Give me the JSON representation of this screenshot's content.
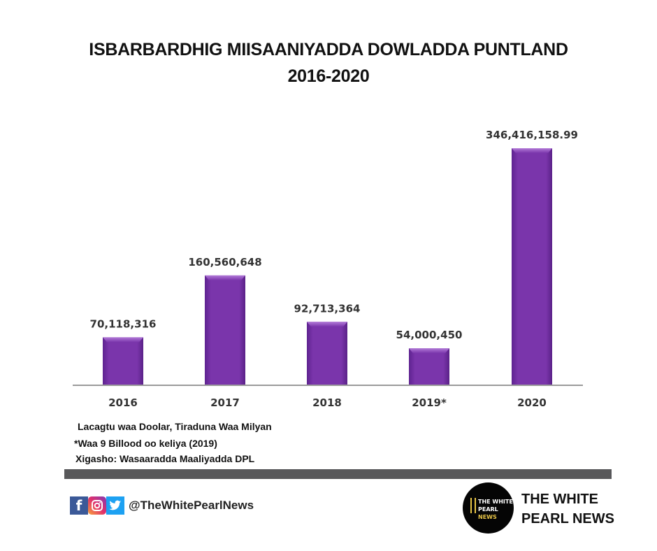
{
  "title_line1": "ISBARBARDHIG MIISAANIYADDA DOWLADDA PUNTLAND",
  "title_line2": "2016-2020",
  "chart_data": {
    "type": "bar",
    "title": "ISBARBARDHIG MIISAANIYADDA DOWLADDA PUNTLAND 2016-2020",
    "categories": [
      "2016",
      "2017",
      "2018",
      "2019*",
      "2020"
    ],
    "values": [
      70118316,
      160560648,
      92713364,
      54000450,
      346416158.99
    ],
    "value_labels": [
      "70,118,316",
      "160,560,648",
      "92,713,364",
      "54,000,450",
      "346,416,158.99"
    ],
    "xlabel": "",
    "ylabel": "",
    "ylim": [
      0,
      346416158.99
    ],
    "grid": false,
    "legend": "none",
    "bar_color": "#7a34a8"
  },
  "notes": [
    "Lacagtu waa Doolar, Tiraduna Waa Milyan",
    "*Waa 9 Billood oo keliya (2019)",
    "Xigasho: Wasaaradda Maaliyadda DPL"
  ],
  "footer": {
    "social_icons": [
      "facebook-icon",
      "instagram-icon",
      "twitter-icon"
    ],
    "handle": "@TheWhitePearlNews",
    "logo_line1": "THE WHITE",
    "logo_line2a": "PEARL",
    "logo_line2b": "NEWS",
    "brand_line1": "THE WHITE",
    "brand_line2": "PEARL NEWS",
    "band_color": "#58585a"
  }
}
